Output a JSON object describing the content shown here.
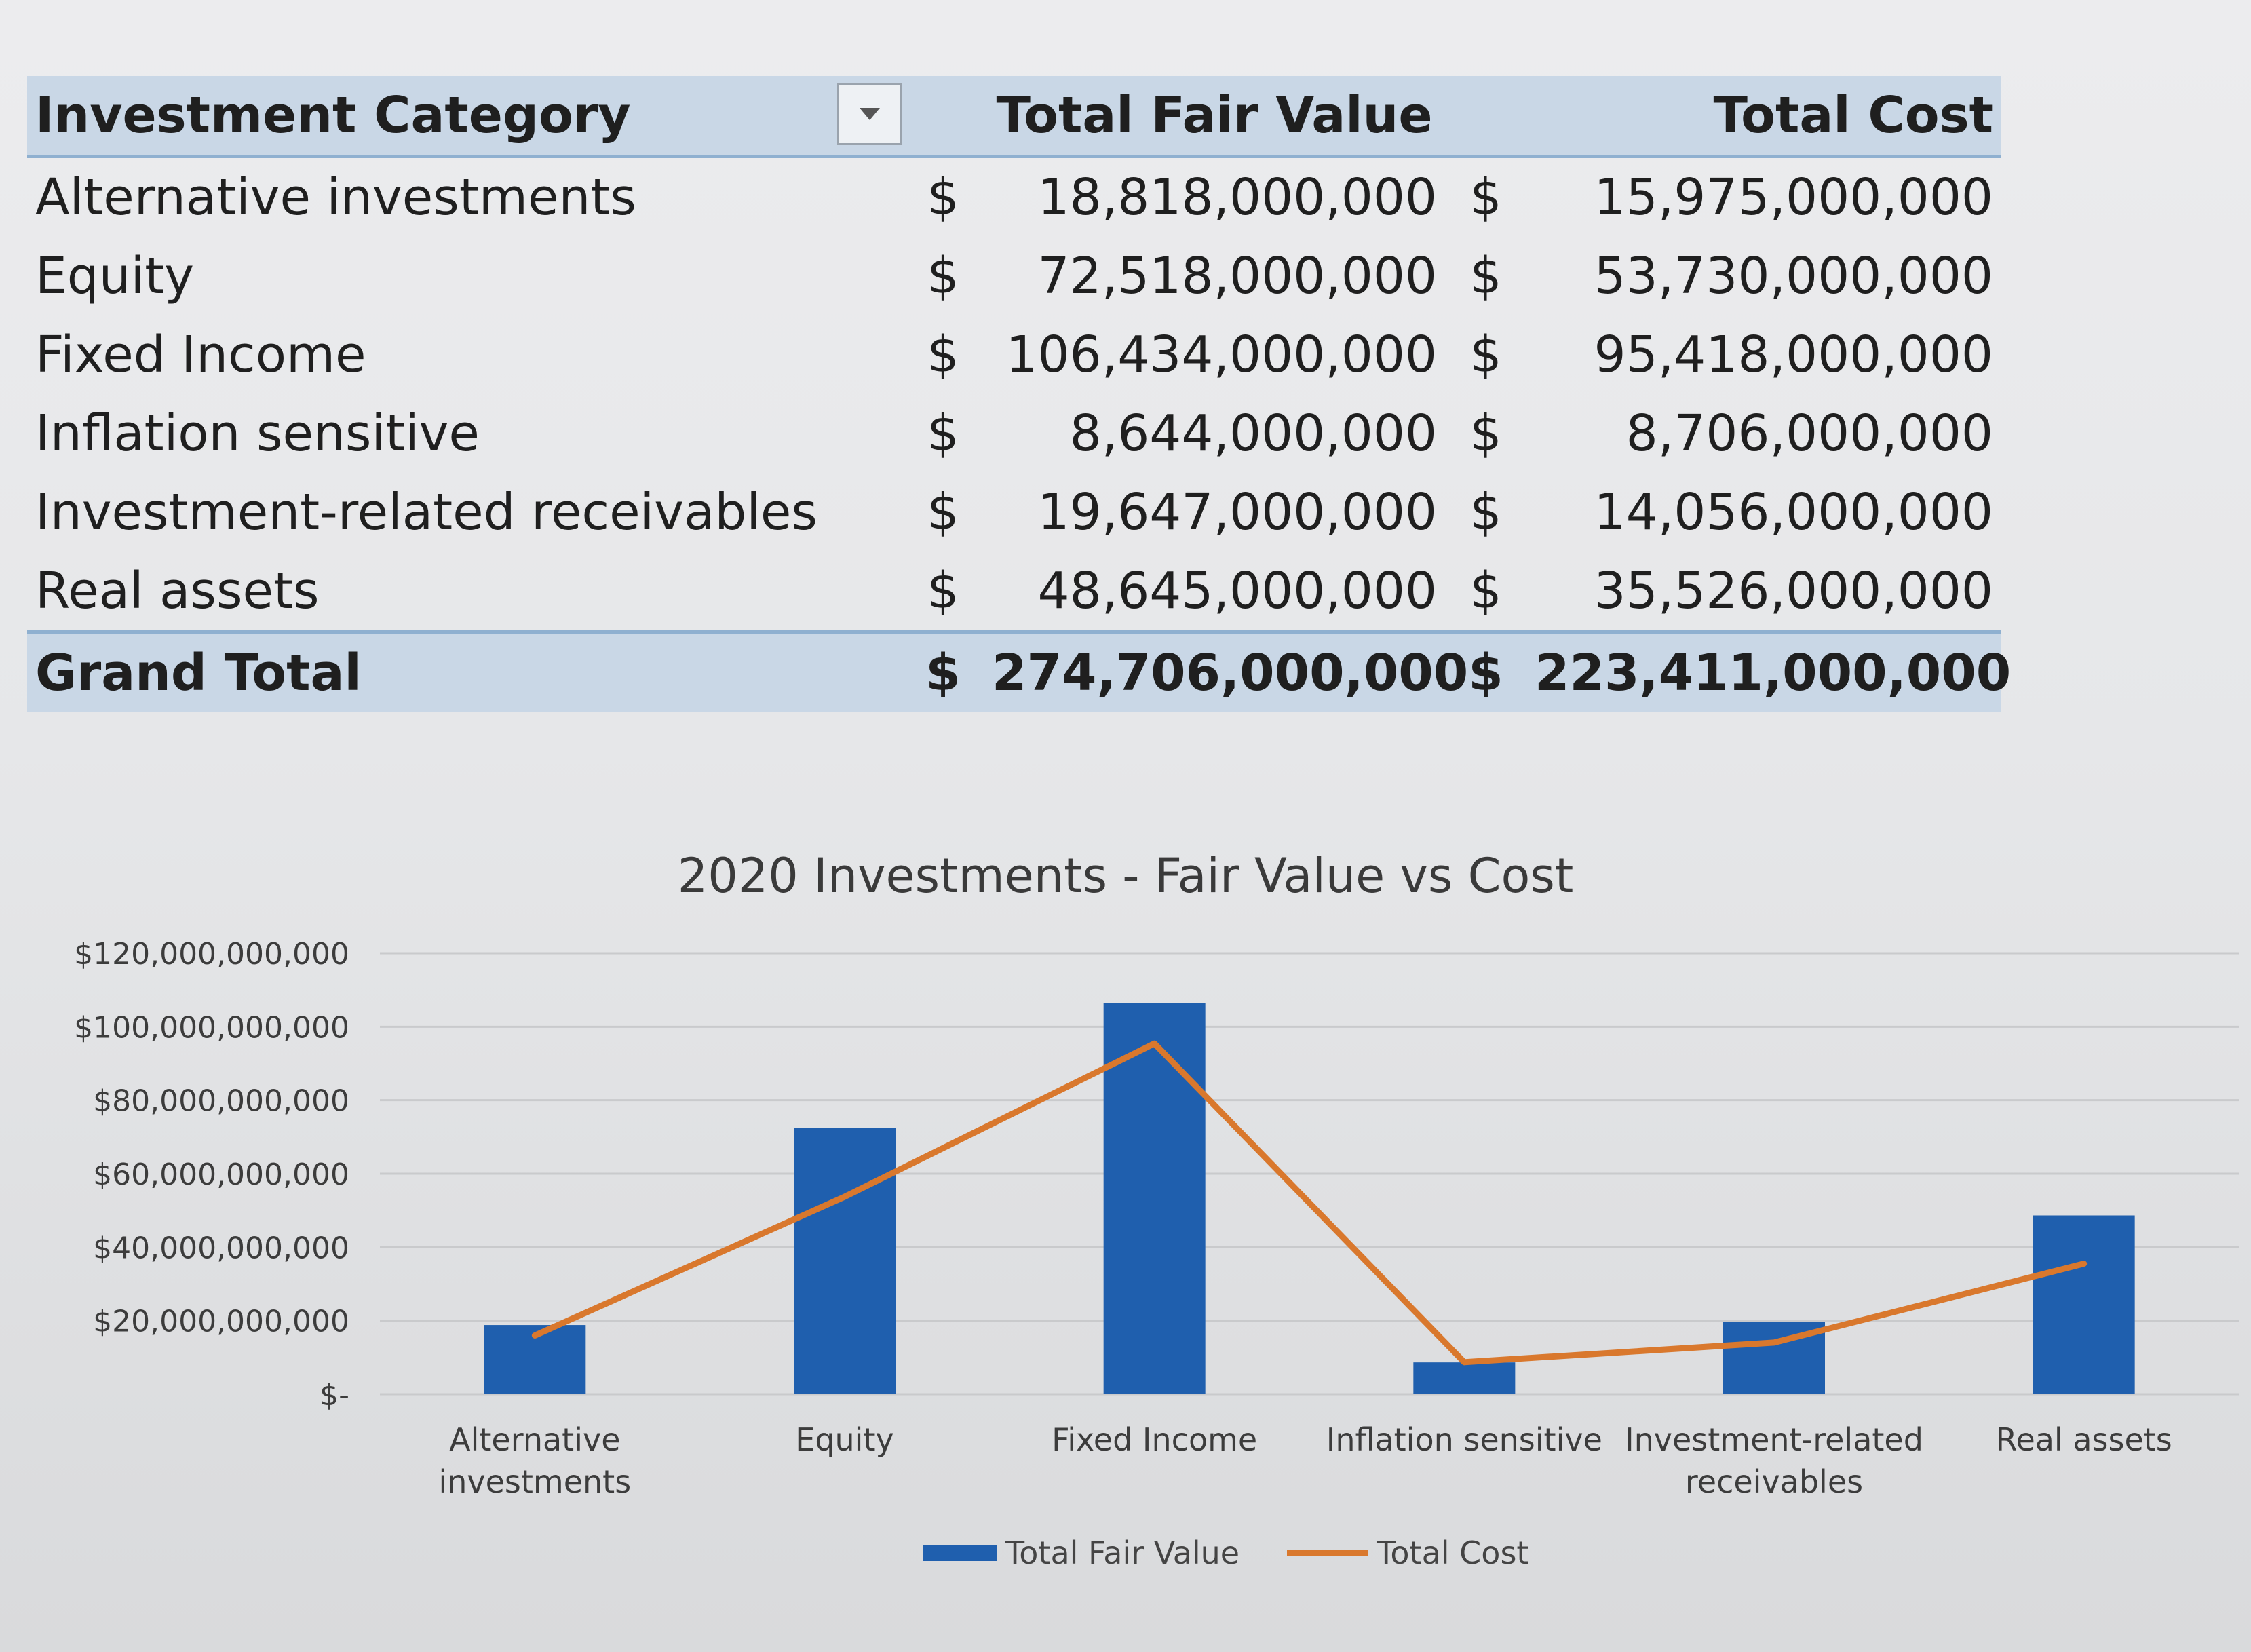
{
  "table": {
    "headers": {
      "category": "Investment Category",
      "fair_value": "Total Fair Value",
      "cost": "Total Cost"
    },
    "currency_symbol": "$",
    "rows": [
      {
        "category": "Alternative investments",
        "fair_value": "18,818,000,000",
        "cost": "15,975,000,000"
      },
      {
        "category": "Equity",
        "fair_value": "72,518,000,000",
        "cost": "53,730,000,000"
      },
      {
        "category": "Fixed Income",
        "fair_value": "106,434,000,000",
        "cost": "95,418,000,000"
      },
      {
        "category": "Inflation sensitive",
        "fair_value": "8,644,000,000",
        "cost": "8,706,000,000"
      },
      {
        "category": "Investment-related receivables",
        "fair_value": "19,647,000,000",
        "cost": "14,056,000,000"
      },
      {
        "category": "Real assets",
        "fair_value": "48,645,000,000",
        "cost": "35,526,000,000"
      }
    ],
    "total": {
      "category": "Grand Total",
      "fair_value": "274,706,000,000",
      "cost": "223,411,000,000"
    }
  },
  "chart_data": {
    "type": "bar",
    "title": "2020 Investments - Fair Value vs Cost",
    "categories": [
      [
        "Alternative",
        "investments"
      ],
      [
        "Equity"
      ],
      [
        "Fixed Income"
      ],
      [
        "Inflation sensitive"
      ],
      [
        "Investment-related",
        "receivables"
      ],
      [
        "Real assets"
      ]
    ],
    "series": [
      {
        "name": "Total Fair Value",
        "type": "bar",
        "color": "#1f5fae",
        "values": [
          18818000000,
          72518000000,
          106434000000,
          8644000000,
          19647000000,
          48645000000
        ]
      },
      {
        "name": "Total Cost",
        "type": "line",
        "color": "#d9782d",
        "values": [
          15975000000,
          53730000000,
          95418000000,
          8706000000,
          14056000000,
          35526000000
        ]
      }
    ],
    "ylim": [
      0,
      120000000000
    ],
    "y_ticks": [
      {
        "value": 120000000000,
        "label": "$120,000,000,000"
      },
      {
        "value": 100000000000,
        "label": "$100,000,000,000"
      },
      {
        "value": 80000000000,
        "label": "$80,000,000,000"
      },
      {
        "value": 60000000000,
        "label": "$60,000,000,000"
      },
      {
        "value": 40000000000,
        "label": "$40,000,000,000"
      },
      {
        "value": 20000000000,
        "label": "$20,000,000,000"
      },
      {
        "value": 0,
        "label": "$-"
      }
    ],
    "grid": true,
    "legend": "bottom"
  }
}
